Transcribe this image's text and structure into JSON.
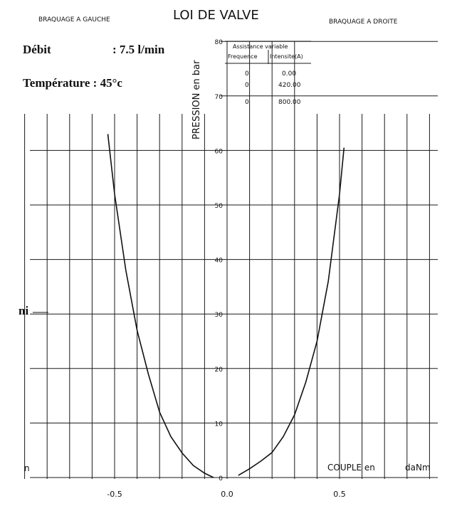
{
  "chart_data": {
    "type": "line",
    "title": "LOI DE VALVE",
    "left_caption": "BRAQUAGE A GAUCHE",
    "right_caption": "BRAQUAGE A DROITE",
    "info": {
      "debit_label": "Débit",
      "debit_value": ": 7.5 l/min",
      "temperature_label": "Température : 45°c",
      "side_label": "ni",
      "corner_label": "n"
    },
    "xlabel_parts": [
      "COUPLE en",
      "daNm"
    ],
    "ylabel": "PRESSION en bar",
    "x_ticks": [
      "-0.5",
      "0.0",
      "0.5"
    ],
    "x_tick_values": [
      -0.5,
      0.0,
      0.5
    ],
    "y_ticks": [
      "0",
      "10",
      "20",
      "30",
      "40",
      "50",
      "60",
      "70",
      "80"
    ],
    "y_tick_values": [
      0,
      10,
      20,
      30,
      40,
      50,
      60,
      70,
      80
    ],
    "xlim": [
      -0.95,
      1.0
    ],
    "ylim": [
      0,
      80
    ],
    "grid": true,
    "table": {
      "header": [
        "Assistance variable",
        "Frequence",
        "Intensite(A)"
      ],
      "rows": [
        [
          "0",
          "0.00"
        ],
        [
          "0",
          "420.00"
        ],
        [
          "0",
          "800.00"
        ]
      ]
    },
    "series": [
      {
        "x": [
          -0.53,
          -0.5,
          -0.45,
          -0.4,
          -0.35,
          -0.3,
          -0.25,
          -0.2,
          -0.15,
          -0.1,
          -0.06
        ],
        "y": [
          63,
          52,
          38,
          27,
          19,
          12,
          7.5,
          4.5,
          2.2,
          0.8,
          0.0
        ]
      },
      {
        "x": [
          0.05,
          0.1,
          0.15,
          0.2,
          0.25,
          0.3,
          0.35,
          0.4,
          0.45,
          0.5,
          0.52
        ],
        "y": [
          0.4,
          1.6,
          3.0,
          4.6,
          7.5,
          11.5,
          17.5,
          25,
          36,
          52,
          60.5
        ]
      }
    ]
  }
}
